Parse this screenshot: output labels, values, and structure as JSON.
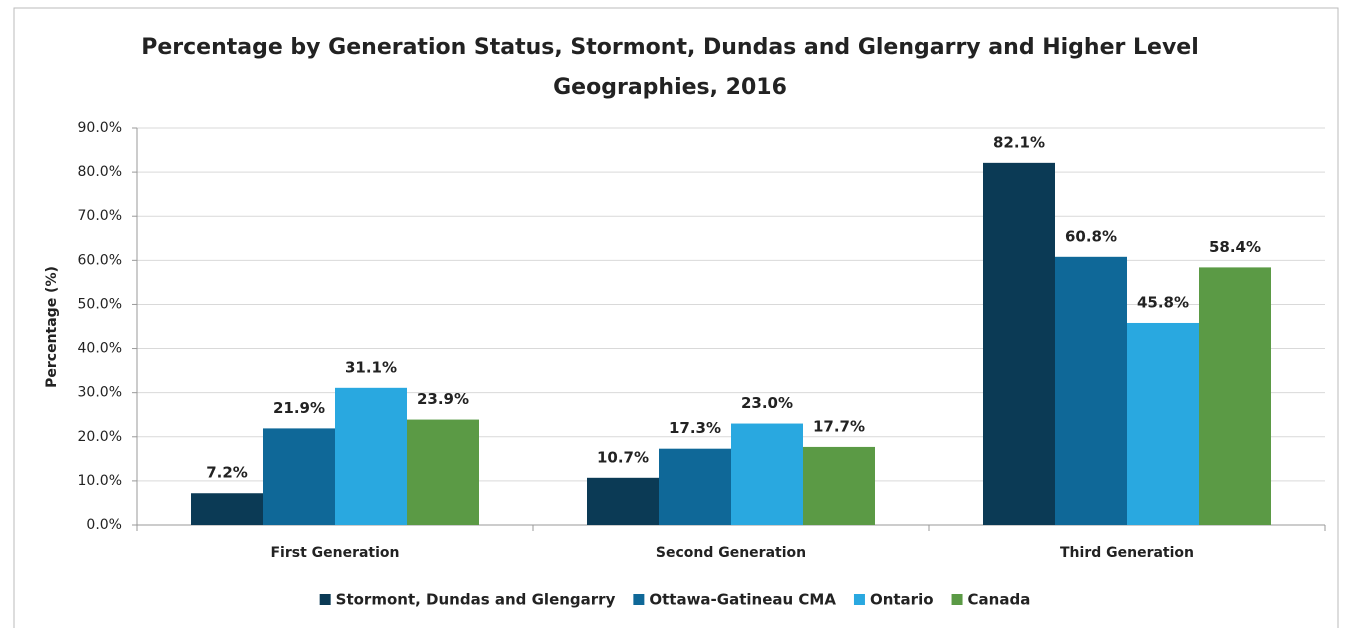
{
  "chart_data": {
    "type": "bar",
    "title": "Percentage by Generation Status, Stormont, Dundas and Glengarry and Higher Level Geographies, 2016",
    "y_label": "Percentage (%)",
    "categories": [
      "First Generation",
      "Second Generation",
      "Third Generation"
    ],
    "series": [
      {
        "name": "Stormont, Dundas and Glengarry",
        "color": "#0b3a55",
        "values": [
          7.2,
          10.7,
          82.1
        ],
        "value_labels": [
          "7.2%",
          "10.7%",
          "82.1%"
        ]
      },
      {
        "name": "Ottawa-Gatineau CMA",
        "color": "#0f6898",
        "values": [
          21.9,
          17.3,
          60.8
        ],
        "value_labels": [
          "21.9%",
          "17.3%",
          "60.8%"
        ]
      },
      {
        "name": "Ontario",
        "color": "#29a8e0",
        "values": [
          31.1,
          23.0,
          45.8
        ],
        "value_labels": [
          "31.1%",
          "23.0%",
          "45.8%"
        ]
      },
      {
        "name": "Canada",
        "color": "#5b9a45",
        "values": [
          23.9,
          17.7,
          58.4
        ],
        "value_labels": [
          "23.9%",
          "17.7%",
          "58.4%"
        ]
      }
    ],
    "ylim": [
      0,
      90
    ],
    "yticks": [
      {
        "value": 0,
        "label": "0.0%"
      },
      {
        "value": 10,
        "label": "10.0%"
      },
      {
        "value": 20,
        "label": "20.0%"
      },
      {
        "value": 30,
        "label": "30.0%"
      },
      {
        "value": 40,
        "label": "40.0%"
      },
      {
        "value": 50,
        "label": "50.0%"
      },
      {
        "value": 60,
        "label": "60.0%"
      },
      {
        "value": 70,
        "label": "70.0%"
      },
      {
        "value": 80,
        "label": "80.0%"
      },
      {
        "value": 90,
        "label": "90.0%"
      }
    ],
    "grid": true,
    "legend": "bottom"
  }
}
